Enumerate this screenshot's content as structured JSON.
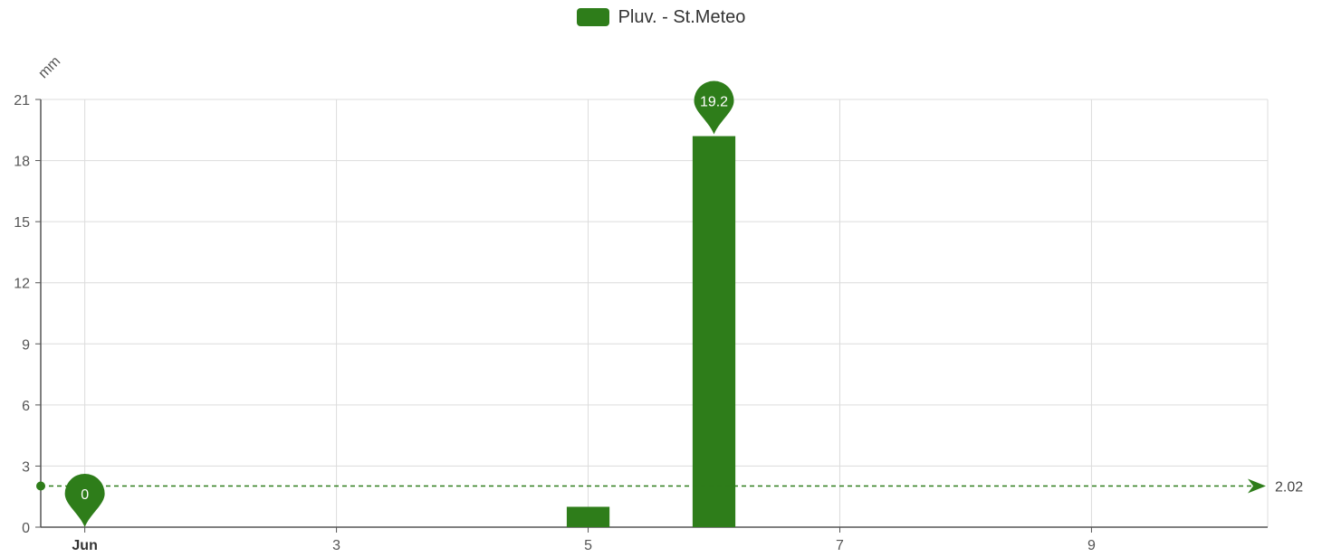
{
  "chart_data": {
    "type": "bar",
    "title": "",
    "ylabel": "mm",
    "xlabel": "",
    "x_ticks": [
      {
        "value": 1,
        "label": "Jun"
      },
      {
        "value": 3,
        "label": "3"
      },
      {
        "value": 5,
        "label": "5"
      },
      {
        "value": 7,
        "label": "7"
      },
      {
        "value": 9,
        "label": "9"
      }
    ],
    "x_range": [
      0.65,
      10.4
    ],
    "ylim": [
      0,
      21
    ],
    "y_ticks": [
      0,
      3,
      6,
      9,
      12,
      15,
      18,
      21
    ],
    "grid": true,
    "legend_position": "top-center",
    "series": [
      {
        "name": "Pluv. - St.Meteo",
        "color": "#2e7d1a",
        "points": [
          {
            "x": 1,
            "y": 0
          },
          {
            "x": 5,
            "y": 1.0
          },
          {
            "x": 6,
            "y": 19.2
          }
        ]
      }
    ],
    "mark_points": [
      {
        "x": 6,
        "y": 19.2,
        "label": "19.2",
        "kind": "max"
      },
      {
        "x": 1,
        "y": 0,
        "label": "0",
        "kind": "min"
      }
    ],
    "mark_line": {
      "y": 2.02,
      "label": "2.02",
      "kind": "average"
    }
  }
}
